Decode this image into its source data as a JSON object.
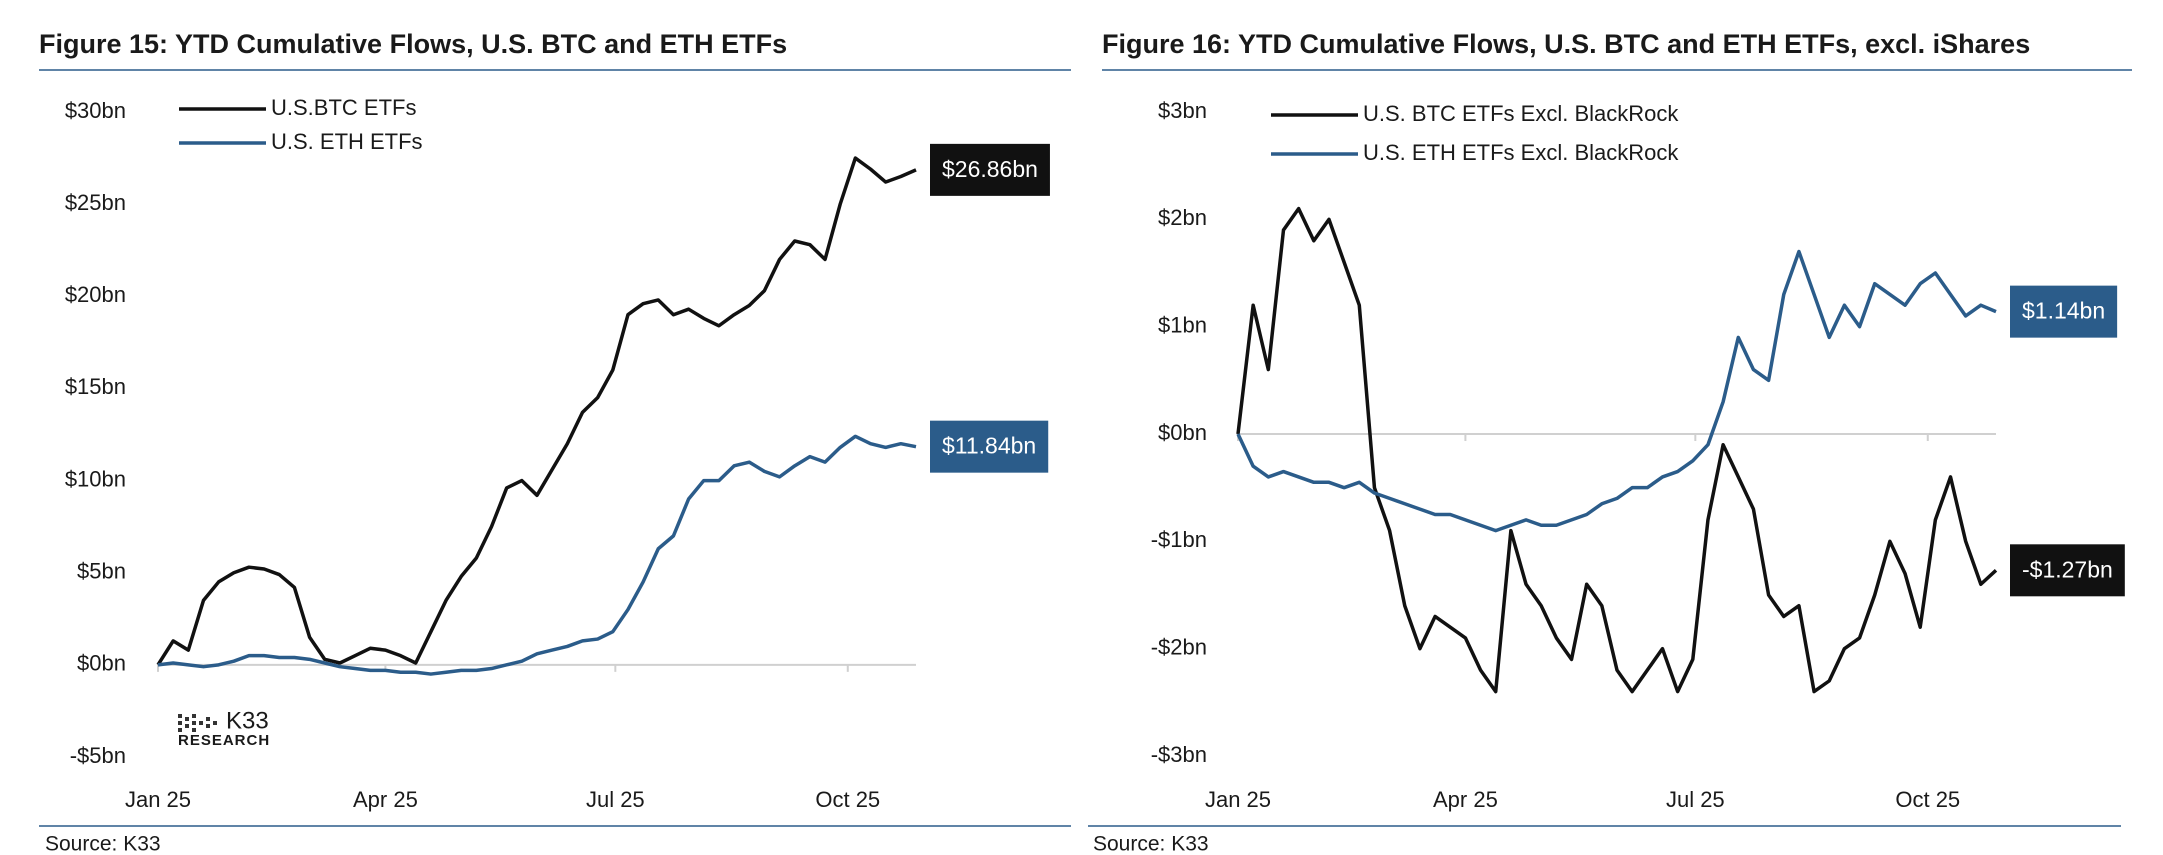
{
  "chart_data": [
    {
      "type": "line",
      "title": "Figure 15: YTD Cumulative Flows, U.S. BTC and ETH ETFs",
      "source": "Source: K33",
      "logo": "K33",
      "logo_sub": "RESEARCH",
      "legend": "upper left",
      "x": [
        0,
        6,
        12,
        18,
        24,
        30,
        36,
        42,
        48,
        54,
        60,
        66,
        72,
        78,
        84,
        90,
        96,
        102,
        108,
        114,
        120,
        126,
        132,
        138,
        144,
        150,
        156,
        162,
        168,
        174,
        180,
        186,
        192,
        198,
        204,
        210,
        216,
        222,
        228,
        234,
        240,
        246,
        252,
        258,
        264,
        270,
        276,
        282,
        288,
        294,
        300
      ],
      "xlim": [
        0,
        300
      ],
      "xticks": [
        {
          "value": 0,
          "label": "Jan 25"
        },
        {
          "value": 90,
          "label": "Apr 25"
        },
        {
          "value": 181,
          "label": "Jul 25"
        },
        {
          "value": 273,
          "label": "Oct 25"
        }
      ],
      "ylim": [
        -5,
        30
      ],
      "yticks": [
        {
          "value": -5,
          "label": "-$5bn"
        },
        {
          "value": 0,
          "label": "$0bn"
        },
        {
          "value": 5,
          "label": "$5bn"
        },
        {
          "value": 10,
          "label": "$10bn"
        },
        {
          "value": 15,
          "label": "$15bn"
        },
        {
          "value": 20,
          "label": "$20bn"
        },
        {
          "value": 25,
          "label": "$25bn"
        },
        {
          "value": 30,
          "label": "$30bn"
        }
      ],
      "series": [
        {
          "name": "U.S.BTC ETFs",
          "color": "#111111",
          "end_label": "$26.86bn",
          "values": [
            0,
            1.3,
            0.8,
            3.5,
            4.5,
            5.0,
            5.3,
            5.2,
            4.9,
            4.2,
            1.5,
            0.3,
            0.1,
            0.5,
            0.9,
            0.8,
            0.5,
            0.1,
            1.8,
            3.5,
            4.8,
            5.8,
            7.5,
            9.6,
            10.0,
            9.2,
            10.6,
            12.0,
            13.7,
            14.5,
            16.0,
            19.0,
            19.6,
            19.8,
            19.0,
            19.3,
            18.8,
            18.4,
            19.0,
            19.5,
            20.3,
            22.0,
            23.0,
            22.8,
            22.0,
            25.0,
            27.5,
            26.9,
            26.2,
            26.5,
            26.86
          ]
        },
        {
          "name": "U.S. ETH ETFs",
          "color": "#2b5c8a",
          "end_label": "$11.84bn",
          "values": [
            0,
            0.1,
            0,
            -0.1,
            0,
            0.2,
            0.5,
            0.5,
            0.4,
            0.4,
            0.3,
            0.1,
            -0.1,
            -0.2,
            -0.3,
            -0.3,
            -0.4,
            -0.4,
            -0.5,
            -0.4,
            -0.3,
            -0.3,
            -0.2,
            0,
            0.2,
            0.6,
            0.8,
            1.0,
            1.3,
            1.4,
            1.8,
            3.0,
            4.5,
            6.3,
            7.0,
            9.0,
            10.0,
            10.0,
            10.8,
            11.0,
            10.5,
            10.2,
            10.8,
            11.3,
            11.0,
            11.8,
            12.4,
            12.0,
            11.8,
            12.0,
            11.84
          ]
        }
      ]
    },
    {
      "type": "line",
      "title": "Figure 16: YTD Cumulative Flows, U.S. BTC and ETH ETFs, excl. iShares",
      "source": "Source: K33",
      "legend": "upper left",
      "x": [
        0,
        6,
        12,
        18,
        24,
        30,
        36,
        42,
        48,
        54,
        60,
        66,
        72,
        78,
        84,
        90,
        96,
        102,
        108,
        114,
        120,
        126,
        132,
        138,
        144,
        150,
        156,
        162,
        168,
        174,
        180,
        186,
        192,
        198,
        204,
        210,
        216,
        222,
        228,
        234,
        240,
        246,
        252,
        258,
        264,
        270,
        276,
        282,
        288,
        294,
        300
      ],
      "xlim": [
        0,
        300
      ],
      "xticks": [
        {
          "value": 0,
          "label": "Jan 25"
        },
        {
          "value": 90,
          "label": "Apr 25"
        },
        {
          "value": 181,
          "label": "Jul 25"
        },
        {
          "value": 273,
          "label": "Oct 25"
        }
      ],
      "ylim": [
        -3,
        3
      ],
      "yticks": [
        {
          "value": -3,
          "label": "-$3bn"
        },
        {
          "value": -2,
          "label": "-$2bn"
        },
        {
          "value": -1,
          "label": "-$1bn"
        },
        {
          "value": 0,
          "label": "$0bn"
        },
        {
          "value": 1,
          "label": "$1bn"
        },
        {
          "value": 2,
          "label": "$2bn"
        },
        {
          "value": 3,
          "label": "$3bn"
        }
      ],
      "series": [
        {
          "name": "U.S. BTC ETFs Excl. BlackRock",
          "color": "#111111",
          "end_label": "-$1.27bn",
          "values": [
            0,
            1.2,
            0.6,
            1.9,
            2.1,
            1.8,
            2.0,
            1.6,
            1.2,
            -0.5,
            -0.9,
            -1.6,
            -2.0,
            -1.7,
            -1.8,
            -1.9,
            -2.2,
            -2.4,
            -0.9,
            -1.4,
            -1.6,
            -1.9,
            -2.1,
            -1.4,
            -1.6,
            -2.2,
            -2.4,
            -2.2,
            -2.0,
            -2.4,
            -2.1,
            -0.8,
            -0.1,
            -0.4,
            -0.7,
            -1.5,
            -1.7,
            -1.6,
            -2.4,
            -2.3,
            -2.0,
            -1.9,
            -1.5,
            -1.0,
            -1.3,
            -1.8,
            -0.8,
            -0.4,
            -1.0,
            -1.4,
            -1.27
          ]
        },
        {
          "name": "U.S. ETH ETFs Excl. BlackRock",
          "color": "#2b5c8a",
          "end_label": "$1.14bn",
          "values": [
            0,
            -0.3,
            -0.4,
            -0.35,
            -0.4,
            -0.45,
            -0.45,
            -0.5,
            -0.45,
            -0.55,
            -0.6,
            -0.65,
            -0.7,
            -0.75,
            -0.75,
            -0.8,
            -0.85,
            -0.9,
            -0.85,
            -0.8,
            -0.85,
            -0.85,
            -0.8,
            -0.75,
            -0.65,
            -0.6,
            -0.5,
            -0.5,
            -0.4,
            -0.35,
            -0.25,
            -0.1,
            0.3,
            0.9,
            0.6,
            0.5,
            1.3,
            1.7,
            1.3,
            0.9,
            1.2,
            1.0,
            1.4,
            1.3,
            1.2,
            1.4,
            1.5,
            1.3,
            1.1,
            1.2,
            1.14
          ]
        }
      ]
    }
  ]
}
